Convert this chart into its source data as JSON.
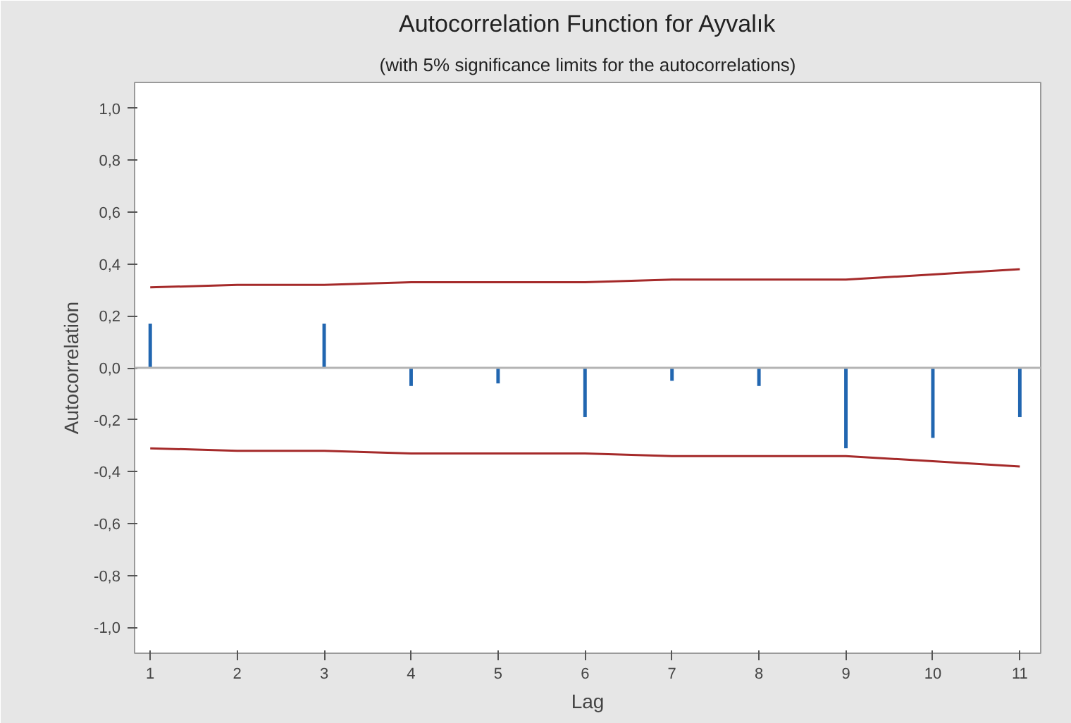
{
  "chart_data": {
    "type": "bar",
    "title": "Autocorrelation Function for Ayvalık",
    "subtitle": "(with 5% significance limits for the autocorrelations)",
    "xlabel": "Lag",
    "ylabel": "Autocorrelation",
    "x": [
      1,
      2,
      3,
      4,
      5,
      6,
      7,
      8,
      9,
      10,
      11
    ],
    "series": [
      {
        "color": "#2166b0",
        "values": [
          0.17,
          0.0,
          0.17,
          -0.07,
          -0.06,
          -0.19,
          -0.05,
          -0.07,
          -0.31,
          -0.27,
          -0.19
        ]
      },
      {
        "type": "line",
        "color": "#a52a2a",
        "values": [
          0.31,
          0.32,
          0.32,
          0.33,
          0.33,
          0.33,
          0.34,
          0.34,
          0.34,
          0.36,
          0.38
        ]
      },
      {
        "type": "line",
        "color": "#a52a2a",
        "values": [
          -0.31,
          -0.32,
          -0.32,
          -0.33,
          -0.33,
          -0.33,
          -0.34,
          -0.34,
          -0.34,
          -0.36,
          -0.38
        ]
      }
    ],
    "xlim": [
      0.82,
      11.24
    ],
    "ylim": [
      -1.1,
      1.1
    ],
    "xticks": [
      1,
      2,
      3,
      4,
      5,
      6,
      7,
      8,
      9,
      10,
      11
    ],
    "yticks": [
      {
        "value": -1.0,
        "label": "-1,0"
      },
      {
        "value": -0.8,
        "label": "-0,8"
      },
      {
        "value": -0.6,
        "label": "-0,6"
      },
      {
        "value": -0.4,
        "label": "-0,4"
      },
      {
        "value": -0.2,
        "label": "-0,2"
      },
      {
        "value": 0.0,
        "label": "0,0"
      },
      {
        "value": 0.2,
        "label": "0,2"
      },
      {
        "value": 0.4,
        "label": "0,4"
      },
      {
        "value": 0.6,
        "label": "0,6"
      },
      {
        "value": 0.8,
        "label": "0,8"
      },
      {
        "value": 1.0,
        "label": "1,0"
      }
    ],
    "ref_lines": [
      {
        "axis": "y",
        "value": 0,
        "color": "#b4b4b4"
      }
    ],
    "grid": false
  }
}
